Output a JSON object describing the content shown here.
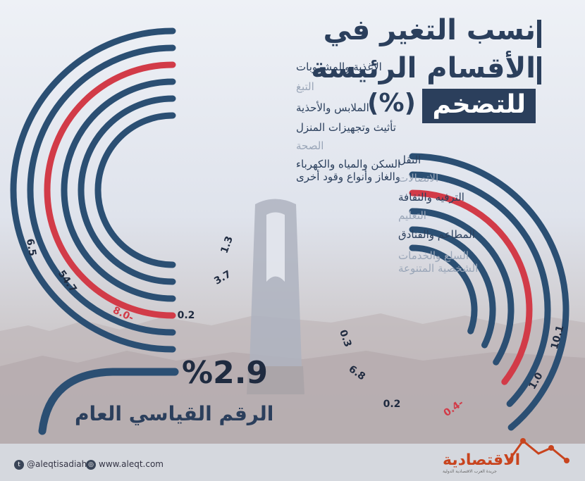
{
  "title": {
    "line1": "نسب التغير في",
    "line2": "الأقسام الرئيسة",
    "line3": "للتضخم",
    "line3_suffix": "(%)"
  },
  "colors": {
    "navy": "#2b4f73",
    "red": "#d23b48",
    "muted_label": "#9aa6b8",
    "dark_label": "#2b3f5c"
  },
  "chart_data": [
    {
      "type": "radial-bar",
      "title": "نسب التغير في الأقسام الرئيسة للتضخم (%)",
      "unit": "%",
      "categories": [
        "الأغذية والمشروبات",
        "التبغ",
        "الملابس والأحذية",
        "تأثيث وتجهيزات المنزل",
        "الصحة",
        "السكن والمياه والكهرباء والغاز وأنواع وقود أخرى"
      ],
      "values": [
        6.5,
        54.7,
        -8.0,
        0.2,
        3.7,
        1.3
      ],
      "value_labels": [
        "6.5",
        "54.7",
        "8.0-",
        "0.2",
        "3.7",
        "1.3"
      ],
      "label_muted": [
        false,
        true,
        false,
        false,
        true,
        false
      ]
    },
    {
      "type": "radial-bar",
      "title": "نسب التغير في الأقسام الرئيسة للتضخم (%)",
      "unit": "%",
      "categories": [
        "النقل",
        "الاتصالات",
        "الترفيه والثقافة",
        "التعليم",
        "المطاعم والفنادق",
        "السلع والخدمات الشخصية المتنوعة"
      ],
      "values": [
        10.1,
        1.0,
        -0.4,
        0.2,
        6.8,
        0.3
      ],
      "value_labels": [
        "10.1",
        "1.0",
        "0.4-",
        "0.2",
        "6.8",
        "0.3"
      ],
      "label_muted": [
        false,
        true,
        false,
        true,
        false,
        true
      ]
    }
  ],
  "general_index": {
    "value": "%2.9",
    "label": "الرقم القياسي العام"
  },
  "footer": {
    "twitter": "@aleqtisadiah",
    "website": "www.aleqt.com",
    "twitter_icon": "twitter-icon",
    "web_icon": "globe-icon",
    "logo": "الاقتصادية",
    "logo_sub": "جريدة العرب الاقتصادية الدولية"
  }
}
